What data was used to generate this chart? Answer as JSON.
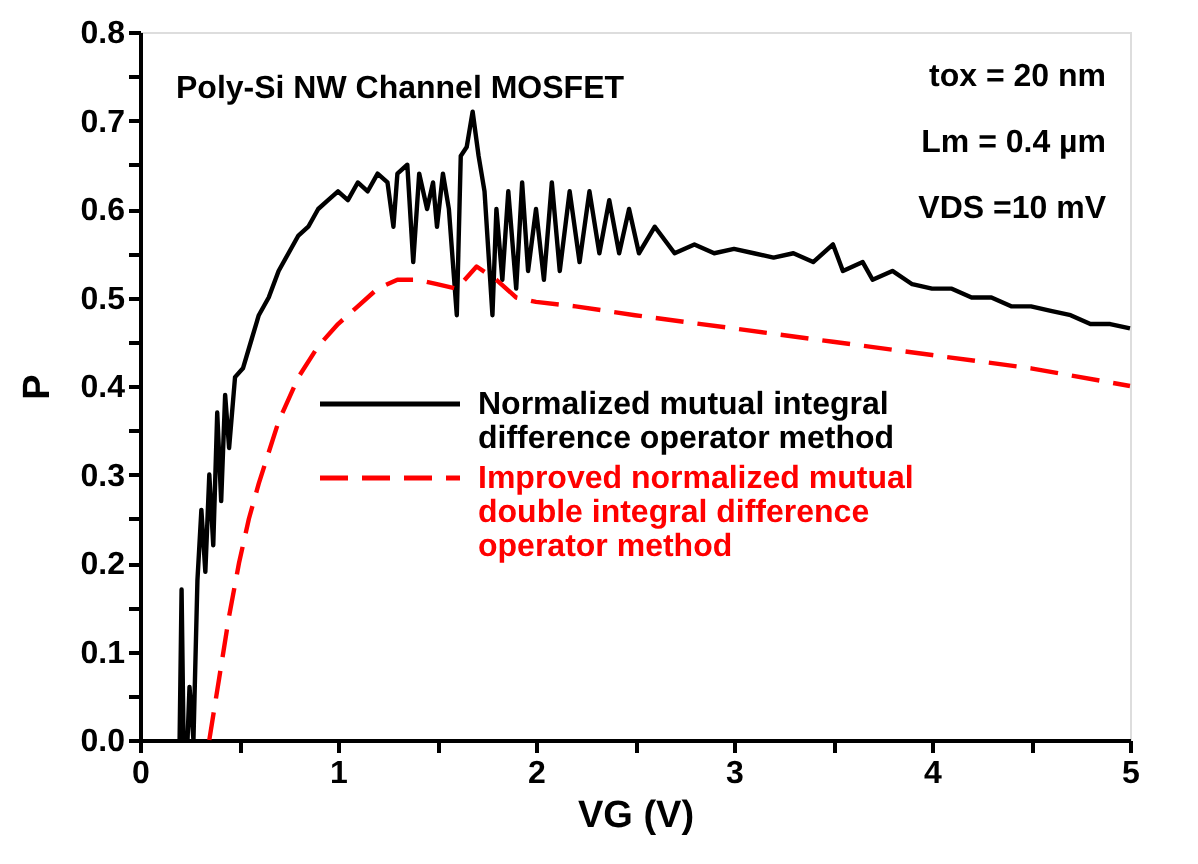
{
  "chart_data": {
    "type": "line",
    "xlabel": "VG (V)",
    "ylabel": "P",
    "annotations": [
      "Poly-Si NW Channel MOSFET",
      "tox = 20 nm",
      "Lm = 0.4 µm",
      "VDS =10 mV"
    ],
    "xlim": [
      0,
      5
    ],
    "ylim": [
      0,
      0.8
    ],
    "xticks": [
      0,
      {
        "value": 0.5,
        "label": null
      },
      1,
      {
        "value": 1.5,
        "label": null
      },
      2,
      {
        "value": 2.5,
        "label": null
      },
      3,
      {
        "value": 3.5,
        "label": null
      },
      4,
      {
        "value": 4.5,
        "label": null
      },
      5
    ],
    "yticks": [
      {
        "value": 0,
        "label": "0.0"
      },
      {
        "value": 0.05,
        "label": null
      },
      0.1,
      {
        "value": 0.15,
        "label": null
      },
      0.2,
      {
        "value": 0.25,
        "label": null
      },
      0.3,
      {
        "value": 0.35,
        "label": null
      },
      0.4,
      {
        "value": 0.45,
        "label": null
      },
      0.5,
      {
        "value": 0.55,
        "label": null
      },
      0.6,
      {
        "value": 0.65,
        "label": null
      },
      0.7,
      {
        "value": 0.75,
        "label": null
      },
      0.8
    ],
    "grid": false,
    "legend": "bottom right",
    "marker": "none",
    "series": [
      {
        "name": "Normalized mutual integral difference operator method",
        "color": "#000000",
        "line_style": "solid",
        "x": [
          0.2,
          0.21,
          0.22,
          0.24,
          0.25,
          0.27,
          0.29,
          0.31,
          0.33,
          0.35,
          0.37,
          0.39,
          0.41,
          0.43,
          0.45,
          0.48,
          0.52,
          0.56,
          0.6,
          0.65,
          0.7,
          0.75,
          0.8,
          0.85,
          0.9,
          0.95,
          1.0,
          1.05,
          1.1,
          1.15,
          1.2,
          1.25,
          1.28,
          1.3,
          1.35,
          1.38,
          1.41,
          1.45,
          1.48,
          1.5,
          1.53,
          1.56,
          1.6,
          1.62,
          1.65,
          1.68,
          1.71,
          1.74,
          1.78,
          1.8,
          1.83,
          1.86,
          1.9,
          1.93,
          1.96,
          2.0,
          2.04,
          2.08,
          2.12,
          2.17,
          2.22,
          2.27,
          2.32,
          2.37,
          2.42,
          2.47,
          2.52,
          2.6,
          2.7,
          2.8,
          2.9,
          3.0,
          3.1,
          3.2,
          3.3,
          3.4,
          3.5,
          3.55,
          3.65,
          3.7,
          3.8,
          3.9,
          4.0,
          4.1,
          4.2,
          4.3,
          4.4,
          4.5,
          4.6,
          4.7,
          4.8,
          4.9,
          5.0
        ],
        "values": [
          0,
          0.17,
          0,
          0,
          0.06,
          0,
          0.18,
          0.26,
          0.19,
          0.3,
          0.22,
          0.37,
          0.27,
          0.39,
          0.33,
          0.41,
          0.42,
          0.45,
          0.48,
          0.5,
          0.53,
          0.55,
          0.57,
          0.58,
          0.6,
          0.61,
          0.62,
          0.61,
          0.63,
          0.62,
          0.64,
          0.63,
          0.58,
          0.64,
          0.65,
          0.54,
          0.64,
          0.6,
          0.63,
          0.58,
          0.64,
          0.6,
          0.48,
          0.66,
          0.67,
          0.71,
          0.66,
          0.62,
          0.48,
          0.6,
          0.52,
          0.62,
          0.51,
          0.63,
          0.53,
          0.6,
          0.52,
          0.63,
          0.53,
          0.62,
          0.54,
          0.62,
          0.55,
          0.61,
          0.55,
          0.6,
          0.55,
          0.58,
          0.55,
          0.56,
          0.55,
          0.555,
          0.55,
          0.545,
          0.55,
          0.54,
          0.56,
          0.53,
          0.54,
          0.52,
          0.53,
          0.515,
          0.51,
          0.51,
          0.5,
          0.5,
          0.49,
          0.49,
          0.485,
          0.48,
          0.47,
          0.47,
          0.465
        ]
      },
      {
        "name": "Improved normalized mutual double integral difference operator method",
        "color": "#ff0000",
        "line_style": "dashed",
        "x": [
          0.35,
          0.4,
          0.45,
          0.5,
          0.55,
          0.6,
          0.7,
          0.8,
          0.9,
          1.0,
          1.1,
          1.2,
          1.3,
          1.4,
          1.5,
          1.6,
          1.7,
          1.8,
          1.9,
          2.0,
          2.2,
          2.5,
          3.0,
          3.5,
          4.0,
          4.5,
          5.0
        ],
        "values": [
          0,
          0.07,
          0.14,
          0.2,
          0.25,
          0.29,
          0.36,
          0.41,
          0.445,
          0.47,
          0.49,
          0.51,
          0.52,
          0.52,
          0.515,
          0.51,
          0.535,
          0.52,
          0.5,
          0.495,
          0.49,
          0.48,
          0.465,
          0.45,
          0.435,
          0.42,
          0.4
        ]
      }
    ]
  }
}
